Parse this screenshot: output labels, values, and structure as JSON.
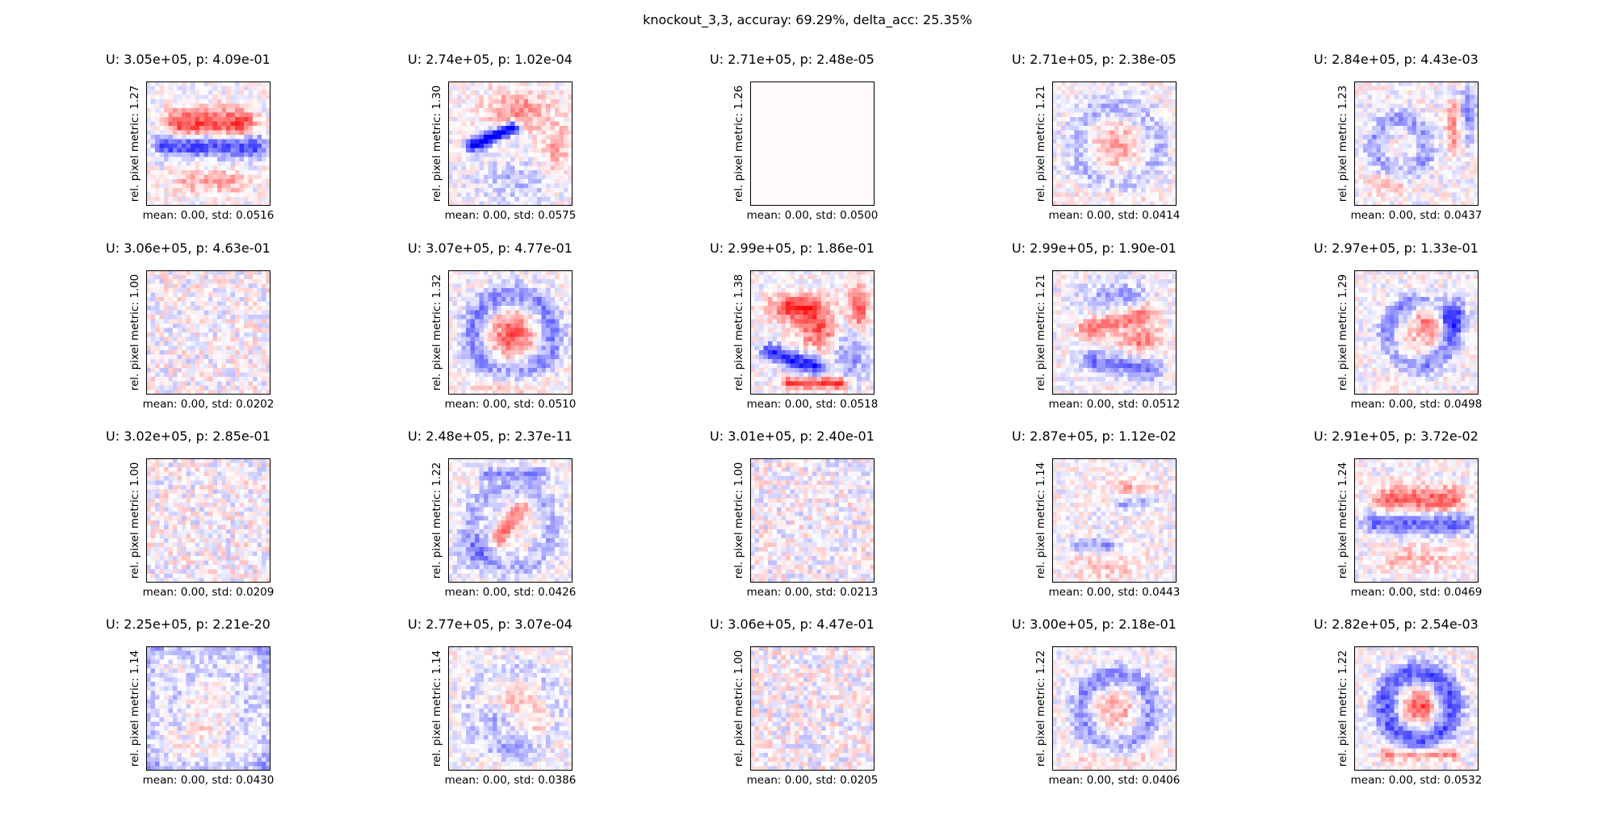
{
  "figure": {
    "title": "knockout_3,3, accuray: 69.29%, delta_acc: 25.35%"
  },
  "chart_data": {
    "type": "heatmap",
    "grid_rows": 4,
    "grid_cols": 5,
    "pixel_grid": 28,
    "colormap": "bwr",
    "colors": {
      "negative": "#0000ff",
      "zero": "#ffffff",
      "positive": "#ff0000",
      "frame": "#000000"
    },
    "axes_ticks": false,
    "panels": [
      {
        "title": "U: 3.05e+05, p: 4.09e-01",
        "ylabel": "rel. pixel metric: 1.27",
        "xlabel": "mean: 0.00, std: 0.0516",
        "std": 0.0516,
        "rel_metric": 1.27,
        "blank": false,
        "pattern": "horizontal-bands"
      },
      {
        "title": "U: 2.74e+05, p: 1.02e-04",
        "ylabel": "rel. pixel metric: 1.30",
        "xlabel": "mean: 0.00, std: 0.0575",
        "std": 0.0575,
        "rel_metric": 1.3,
        "blank": false,
        "pattern": "diagonal-stroke"
      },
      {
        "title": "U: 2.71e+05, p: 2.48e-05",
        "ylabel": "rel. pixel metric: 1.26",
        "xlabel": "mean: 0.00, std: 0.0500",
        "std": 0.05,
        "rel_metric": 1.26,
        "blank": true,
        "pattern": "flat"
      },
      {
        "title": "U: 2.71e+05, p: 2.38e-05",
        "ylabel": "rel. pixel metric: 1.21",
        "xlabel": "mean: 0.00, std: 0.0414",
        "std": 0.0414,
        "rel_metric": 1.21,
        "blank": false,
        "pattern": "ring-center"
      },
      {
        "title": "U: 2.84e+05, p: 4.43e-03",
        "ylabel": "rel. pixel metric: 1.23",
        "xlabel": "mean: 0.00, std: 0.0437",
        "std": 0.0437,
        "rel_metric": 1.23,
        "blank": false,
        "pattern": "loops"
      },
      {
        "title": "U: 3.06e+05, p: 4.63e-01",
        "ylabel": "rel. pixel metric: 1.00",
        "xlabel": "mean: 0.00, std: 0.0202",
        "std": 0.0202,
        "rel_metric": 1.0,
        "blank": false,
        "pattern": "noise"
      },
      {
        "title": "U: 3.07e+05, p: 4.77e-01",
        "ylabel": "rel. pixel metric: 1.32",
        "xlabel": "mean: 0.00, std: 0.0510",
        "std": 0.051,
        "rel_metric": 1.32,
        "blank": false,
        "pattern": "ring-center"
      },
      {
        "title": "U: 2.99e+05, p: 1.86e-01",
        "ylabel": "rel. pixel metric: 1.38",
        "xlabel": "mean: 0.00, std: 0.0518",
        "std": 0.0518,
        "rel_metric": 1.38,
        "blank": false,
        "pattern": "swirl"
      },
      {
        "title": "U: 2.99e+05, p: 1.90e-01",
        "ylabel": "rel. pixel metric: 1.21",
        "xlabel": "mean: 0.00, std: 0.0512",
        "std": 0.0512,
        "rel_metric": 1.21,
        "blank": false,
        "pattern": "mixed-strokes"
      },
      {
        "title": "U: 2.97e+05, p: 1.33e-01",
        "ylabel": "rel. pixel metric: 1.29",
        "xlabel": "mean: 0.00, std: 0.0498",
        "std": 0.0498,
        "rel_metric": 1.29,
        "blank": false,
        "pattern": "ring-right"
      },
      {
        "title": "U: 3.02e+05, p: 2.85e-01",
        "ylabel": "rel. pixel metric: 1.00",
        "xlabel": "mean: 0.00, std: 0.0209",
        "std": 0.0209,
        "rel_metric": 1.0,
        "blank": false,
        "pattern": "noise"
      },
      {
        "title": "U: 2.48e+05, p: 2.37e-11",
        "ylabel": "rel. pixel metric: 1.22",
        "xlabel": "mean: 0.00, std: 0.0426",
        "std": 0.0426,
        "rel_metric": 1.22,
        "blank": false,
        "pattern": "diagonal-center"
      },
      {
        "title": "U: 3.01e+05, p: 2.40e-01",
        "ylabel": "rel. pixel metric: 1.00",
        "xlabel": "mean: 0.00, std: 0.0213",
        "std": 0.0213,
        "rel_metric": 1.0,
        "blank": false,
        "pattern": "noise"
      },
      {
        "title": "U: 2.87e+05, p: 1.12e-02",
        "ylabel": "rel. pixel metric: 1.14",
        "xlabel": "mean: 0.00, std: 0.0443",
        "std": 0.0443,
        "rel_metric": 1.14,
        "blank": false,
        "pattern": "bars"
      },
      {
        "title": "U: 2.91e+05, p: 3.72e-02",
        "ylabel": "rel. pixel metric: 1.24",
        "xlabel": "mean: 0.00, std: 0.0469",
        "std": 0.0469,
        "rel_metric": 1.24,
        "blank": false,
        "pattern": "horizontal-bands"
      },
      {
        "title": "U: 2.25e+05, p: 2.21e-20",
        "ylabel": "rel. pixel metric: 1.14",
        "xlabel": "mean: 0.00, std: 0.0430",
        "std": 0.043,
        "rel_metric": 1.14,
        "blank": false,
        "pattern": "frame"
      },
      {
        "title": "U: 2.77e+05, p: 3.07e-04",
        "ylabel": "rel. pixel metric: 1.14",
        "xlabel": "mean: 0.00, std: 0.0386",
        "std": 0.0386,
        "rel_metric": 1.14,
        "blank": false,
        "pattern": "blobs"
      },
      {
        "title": "U: 3.06e+05, p: 4.47e-01",
        "ylabel": "rel. pixel metric: 1.00",
        "xlabel": "mean: 0.00, std: 0.0205",
        "std": 0.0205,
        "rel_metric": 1.0,
        "blank": false,
        "pattern": "noise"
      },
      {
        "title": "U: 3.00e+05, p: 2.18e-01",
        "ylabel": "rel. pixel metric: 1.22",
        "xlabel": "mean: 0.00, std: 0.0406",
        "std": 0.0406,
        "rel_metric": 1.22,
        "blank": false,
        "pattern": "ring"
      },
      {
        "title": "U: 2.82e+05, p: 2.54e-03",
        "ylabel": "rel. pixel metric: 1.22",
        "xlabel": "mean: 0.00, std: 0.0532",
        "std": 0.0532,
        "rel_metric": 1.22,
        "blank": false,
        "pattern": "ring-red-center"
      }
    ]
  }
}
